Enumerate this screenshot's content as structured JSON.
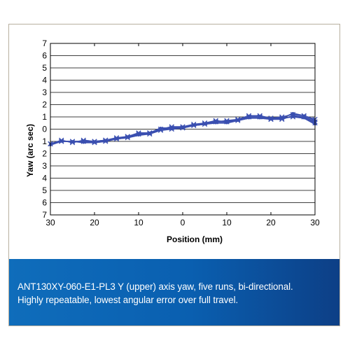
{
  "chart_data": {
    "type": "line",
    "title": "",
    "xlabel": "Position (mm)",
    "ylabel": "Yaw (arc sec)",
    "xlim": [
      -30,
      30
    ],
    "ylim": [
      -7,
      7
    ],
    "x_ticks": [
      {
        "value": -30,
        "label": "30"
      },
      {
        "value": -20,
        "label": "20"
      },
      {
        "value": -10,
        "label": "10"
      },
      {
        "value": 0,
        "label": "0"
      },
      {
        "value": 10,
        "label": "10"
      },
      {
        "value": 20,
        "label": "20"
      },
      {
        "value": 30,
        "label": "30"
      }
    ],
    "y_ticks": [
      {
        "value": 7,
        "label": "7"
      },
      {
        "value": 6,
        "label": "6"
      },
      {
        "value": 5,
        "label": "5"
      },
      {
        "value": 4,
        "label": "4"
      },
      {
        "value": 3,
        "label": "3"
      },
      {
        "value": 2,
        "label": "2"
      },
      {
        "value": 1,
        "label": "1"
      },
      {
        "value": 0,
        "label": "0"
      },
      {
        "value": -1,
        "label": "1"
      },
      {
        "value": -2,
        "label": "2"
      },
      {
        "value": -3,
        "label": "3"
      },
      {
        "value": -4,
        "label": "4"
      },
      {
        "value": -5,
        "label": "5"
      },
      {
        "value": -6,
        "label": "6"
      },
      {
        "value": -7,
        "label": "7"
      }
    ],
    "grid": "horizontal",
    "line_color": "#3a4fb0",
    "x": [
      -30,
      -27.5,
      -25,
      -22.5,
      -20,
      -17.5,
      -15,
      -12.5,
      -10,
      -7.5,
      -5,
      -2.5,
      0,
      2.5,
      5,
      7.5,
      10,
      12.5,
      15,
      17.5,
      20,
      22.5,
      25,
      27.5,
      30
    ],
    "series": [
      {
        "values": [
          -1.2,
          -1.0,
          -1.0,
          -1.0,
          -1.1,
          -1.0,
          -0.8,
          -0.7,
          -0.4,
          -0.4,
          -0.1,
          0.0,
          0.1,
          0.3,
          0.5,
          0.6,
          0.7,
          0.8,
          1.1,
          1.1,
          0.9,
          1.0,
          1.2,
          1.1,
          0.8
        ]
      },
      {
        "values": [
          -1.2,
          -1.0,
          -1.0,
          -1.0,
          -1.0,
          -0.9,
          -0.8,
          -0.6,
          -0.4,
          -0.3,
          0.1,
          0.1,
          0.2,
          0.3,
          0.4,
          0.6,
          0.6,
          0.7,
          1.0,
          1.0,
          0.9,
          0.9,
          1.3,
          1.1,
          0.7
        ]
      },
      {
        "values": [
          -1.2,
          -0.9,
          -1.1,
          -0.9,
          -1.0,
          -0.9,
          -0.7,
          -0.6,
          -0.3,
          -0.3,
          0.0,
          0.2,
          0.2,
          0.4,
          0.5,
          0.7,
          0.6,
          0.8,
          1.0,
          1.0,
          0.8,
          0.9,
          1.0,
          1.0,
          0.5
        ]
      },
      {
        "values": [
          -1.3,
          -1.0,
          -1.0,
          -1.1,
          -1.1,
          -1.0,
          -0.8,
          -0.7,
          -0.5,
          -0.4,
          0.0,
          0.0,
          0.1,
          0.3,
          0.4,
          0.5,
          0.5,
          0.7,
          0.9,
          0.9,
          0.8,
          0.9,
          1.0,
          0.9,
          0.4
        ]
      },
      {
        "values": [
          -1.2,
          -1.0,
          -1.0,
          -1.0,
          -1.0,
          -0.9,
          -0.8,
          -0.6,
          -0.4,
          -0.3,
          0.0,
          0.1,
          0.1,
          0.3,
          0.4,
          0.6,
          0.6,
          0.7,
          1.0,
          1.0,
          0.8,
          0.8,
          1.1,
          1.0,
          0.6
        ]
      }
    ]
  },
  "caption": {
    "line1": "ANT130XY-060-E1-PL3 Y (upper) axis yaw, five runs, bi-directional.",
    "line2": "Highly repeatable, lowest angular error over full travel."
  }
}
